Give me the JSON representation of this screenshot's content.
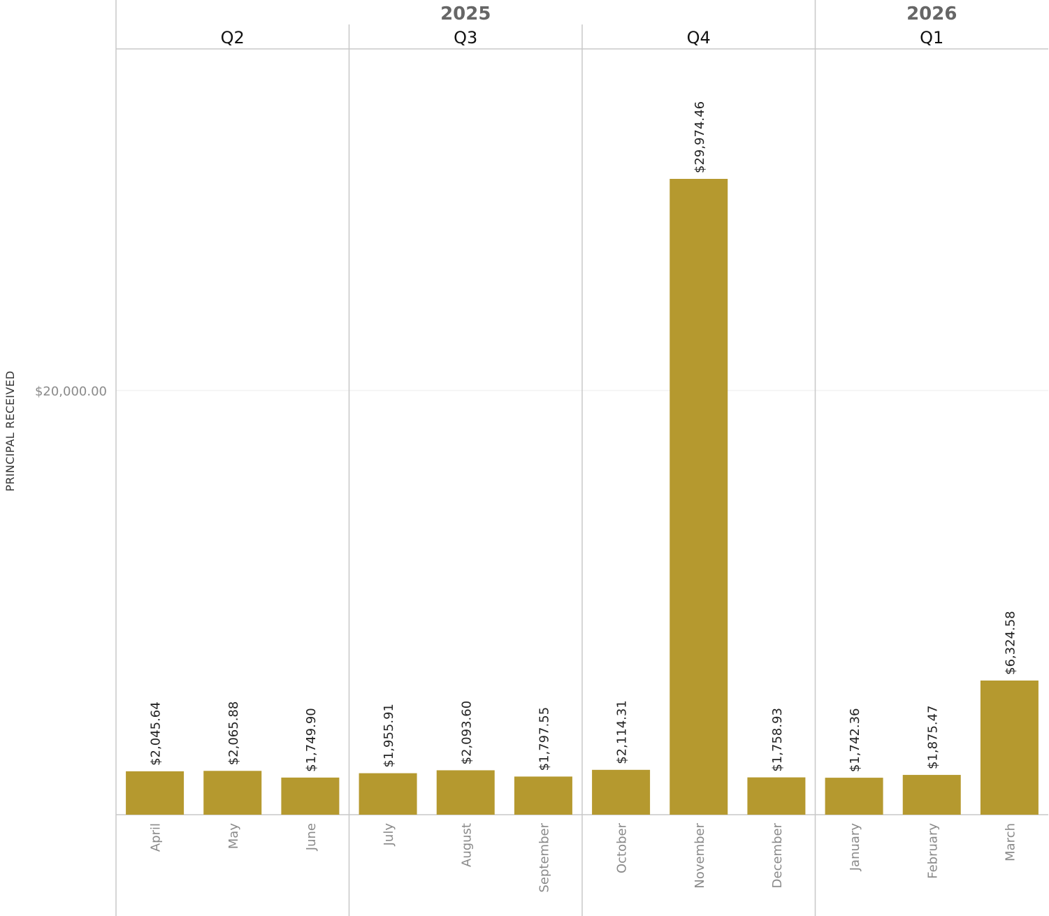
{
  "chart_data": {
    "type": "bar",
    "ylabel": "PRINCIPAL RECEIVED",
    "y_ticks": [
      {
        "value": 20000,
        "label": "$20,000.00"
      }
    ],
    "ylim": [
      0,
      33000
    ],
    "bar_color": "#b5992f",
    "grid": true,
    "years": [
      {
        "label": "2025",
        "quarters": [
          "Q2",
          "Q3",
          "Q4"
        ]
      },
      {
        "label": "2026",
        "quarters": [
          "Q1"
        ]
      }
    ],
    "quarters": [
      {
        "label": "Q2",
        "months": [
          "April",
          "May",
          "June"
        ]
      },
      {
        "label": "Q3",
        "months": [
          "July",
          "August",
          "September"
        ]
      },
      {
        "label": "Q4",
        "months": [
          "October",
          "November",
          "December"
        ]
      },
      {
        "label": "Q1",
        "months": [
          "January",
          "February",
          "March"
        ]
      }
    ],
    "categories": [
      "April",
      "May",
      "June",
      "July",
      "August",
      "September",
      "October",
      "November",
      "December",
      "January",
      "February",
      "March"
    ],
    "values": [
      2045.64,
      2065.88,
      1749.9,
      1955.91,
      2093.6,
      1797.55,
      2114.31,
      29974.46,
      1758.93,
      1742.36,
      1875.47,
      6324.58
    ],
    "value_labels": [
      "$2,045.64",
      "$2,065.88",
      "$1,749.90",
      "$1,955.91",
      "$2,093.60",
      "$1,797.55",
      "$2,114.31",
      "$29,974.46",
      "$1,758.93",
      "$1,742.36",
      "$1,875.47",
      "$6,324.58"
    ]
  }
}
